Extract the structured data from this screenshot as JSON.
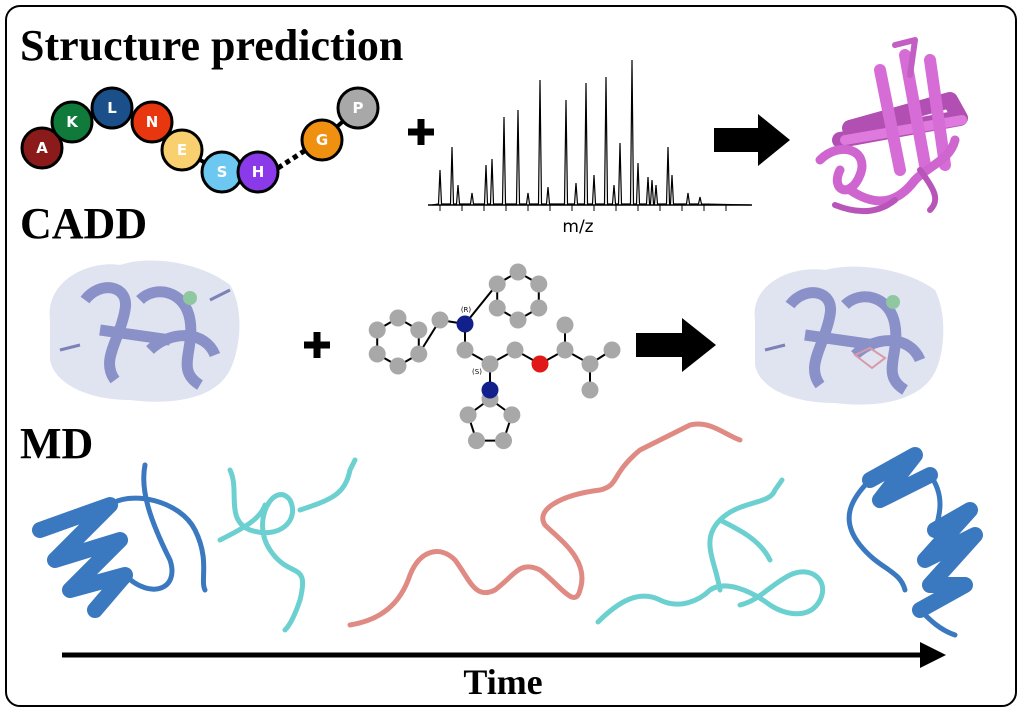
{
  "sections": [
    {
      "title": "Structure prediction",
      "sequence": [
        "A",
        "K",
        "L",
        "N",
        "E",
        "S",
        "H",
        "G",
        "P"
      ],
      "spectrum_axis_label": "m/z"
    },
    {
      "title": "CADD",
      "stereo_labels": [
        "(R)",
        "(S)"
      ]
    },
    {
      "title": "MD"
    }
  ],
  "time_axis_label": "Time"
}
